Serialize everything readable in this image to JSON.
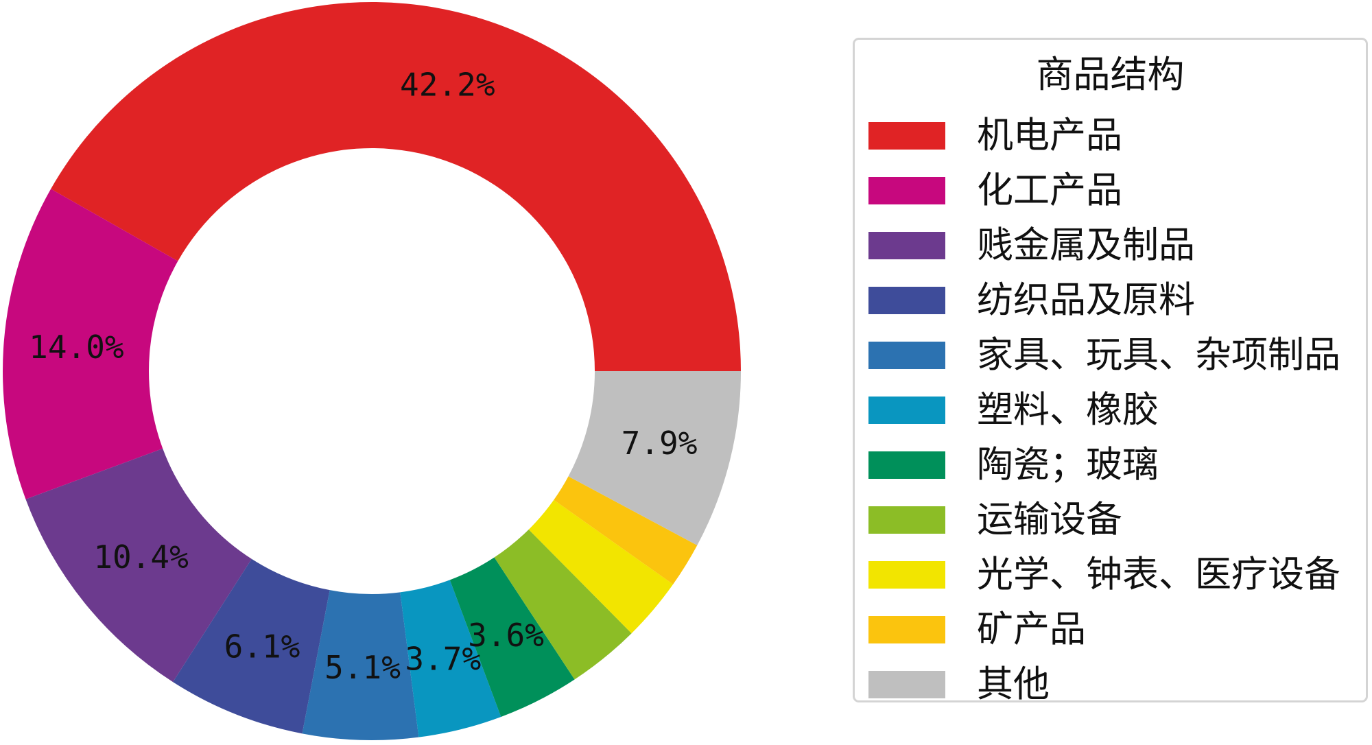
{
  "chart_data": {
    "type": "pie",
    "style": "donut",
    "legend_title": "商品结构",
    "legend_position": "right",
    "slices": [
      {
        "label": "机电产品",
        "value": 42.2,
        "display": "42.2%",
        "color": "#e02325"
      },
      {
        "label": "化工产品",
        "value": 14.0,
        "display": "14.0%",
        "color": "#c7087e"
      },
      {
        "label": "贱金属及制品",
        "value": 10.4,
        "display": "10.4%",
        "color": "#6c3a8e"
      },
      {
        "label": "纺织品及原料",
        "value": 6.1,
        "display": "6.1%",
        "color": "#3e4c9a"
      },
      {
        "label": "家具、玩具、杂项制品",
        "value": 5.1,
        "display": "5.1%",
        "color": "#2c72b1"
      },
      {
        "label": "塑料、橡胶",
        "value": 3.7,
        "display": "3.7%",
        "color": "#0996c0"
      },
      {
        "label": "陶瓷；玻璃",
        "value": 3.6,
        "display": "3.6%",
        "color": "#00905a"
      },
      {
        "label": "运输设备",
        "value": 3.2,
        "display": "",
        "color": "#8cbd26"
      },
      {
        "label": "光学、钟表、医疗设备",
        "value": 2.8,
        "display": "",
        "color": "#f2e500"
      },
      {
        "label": "矿产品",
        "value": 2.0,
        "display": "",
        "color": "#fbc40e"
      },
      {
        "label": "其他",
        "value": 7.9,
        "display": "7.9%",
        "color": "#bfbfbf"
      }
    ]
  }
}
